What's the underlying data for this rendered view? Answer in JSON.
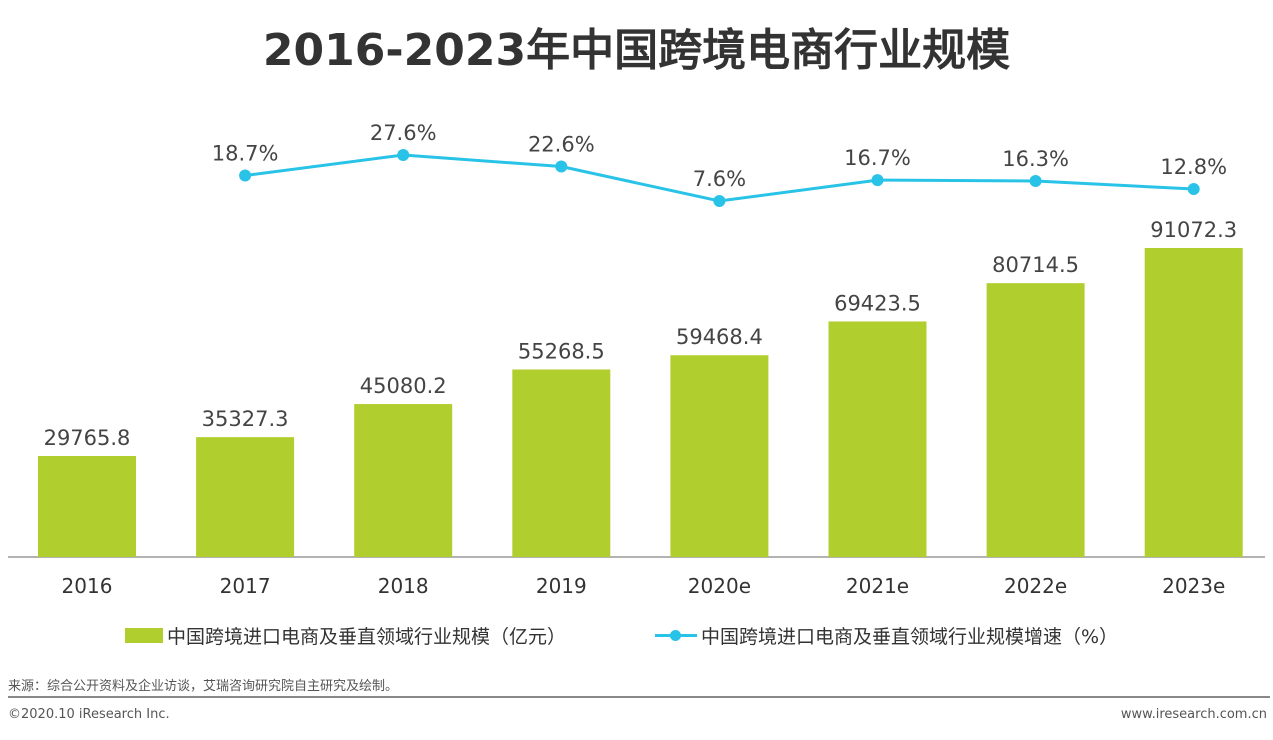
{
  "chart_data": {
    "type": "bar",
    "title": "2016-2023年中国跨境电商行业规模",
    "categories": [
      "2016",
      "2017",
      "2018",
      "2019",
      "2020e",
      "2021e",
      "2022e",
      "2023e"
    ],
    "series": [
      {
        "name": "中国跨境进口电商及垂直领域行业规模（亿元）",
        "type": "bar",
        "color": "#b0cf2f",
        "values": [
          29765.8,
          35327.3,
          45080.2,
          55268.5,
          59468.4,
          69423.5,
          80714.5,
          91072.3
        ]
      },
      {
        "name": "中国跨境进口电商及垂直领域行业规模增速（%）",
        "type": "line",
        "color": "#29c3e8",
        "values": [
          null,
          18.7,
          27.6,
          22.6,
          7.6,
          16.7,
          16.3,
          12.8
        ],
        "labels": [
          "",
          "18.7%",
          "27.6%",
          "22.6%",
          "7.6%",
          "16.7%",
          "16.3%",
          "12.8%"
        ]
      }
    ],
    "grid": false,
    "legend": "bottom"
  },
  "footer": {
    "source": "来源：综合公开资料及企业访谈，艾瑞咨询研究院自主研究及绘制。",
    "copyright": "©2020.10 iResearch Inc.",
    "website": "www.iresearch.com.cn"
  }
}
